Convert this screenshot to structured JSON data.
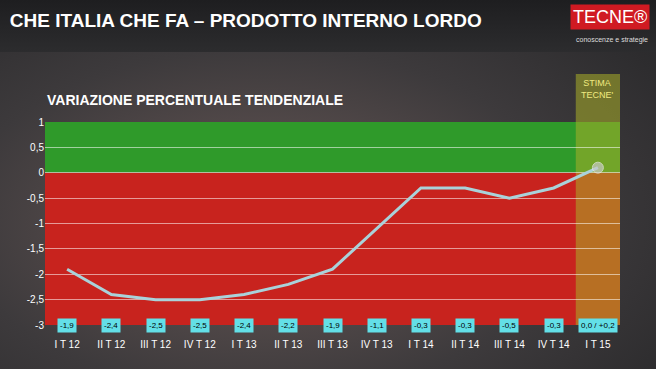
{
  "chart_data": {
    "type": "line",
    "title": "CHE ITALIA CHE FA – PRODOTTO INTERNO LORDO",
    "subtitle": "VARIAZIONE PERCENTUALE TENDENZIALE",
    "logo": "TECNE®",
    "tagline": "conoscenze e strategie",
    "annotations": [
      {
        "text": "STIMA TECNE'",
        "category": "I T 15"
      }
    ],
    "categories": [
      "I T 12",
      "II T 12",
      "III T 12",
      "IV T 12",
      "I T 13",
      "II T 13",
      "III T 13",
      "IV T 13",
      "I T 14",
      "II T 14",
      "III T 14",
      "IV T 14",
      "I T 15"
    ],
    "values": [
      -1.9,
      -2.4,
      -2.5,
      -2.5,
      -2.4,
      -2.2,
      -1.9,
      -1.1,
      -0.3,
      -0.3,
      -0.5,
      -0.3,
      0.1
    ],
    "value_labels": [
      "-1,9",
      "-2,4",
      "-2,5",
      "-2,5",
      "-2,4",
      "-2,2",
      "-1,9",
      "-1,1",
      "-0,3",
      "-0,3",
      "-0,5",
      "-0,3",
      "0,0 / +0,2"
    ],
    "color": "#a9d2da",
    "marker": "circle",
    "ylim": [
      -3,
      1
    ],
    "yticks": [
      -3,
      {
        "value": -2.5,
        "label": "-2,5"
      },
      -2,
      {
        "value": -1.5,
        "label": "-1,5"
      },
      -1,
      {
        "value": -0.5,
        "label": "-0,5"
      },
      0,
      {
        "value": 0.5,
        "label": "0,5"
      },
      1
    ],
    "grid": true,
    "data_labels": true
  }
}
